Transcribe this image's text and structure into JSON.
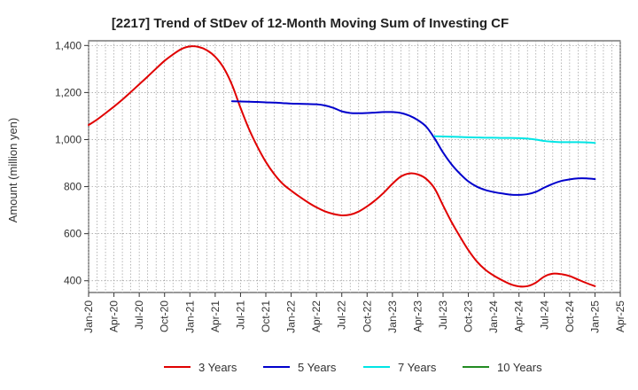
{
  "chart_data": {
    "type": "line",
    "title": "[2217]  Trend of StDev of 12-Month Moving Sum of Investing CF",
    "ylabel": "Amount (million yen)",
    "xlabel": "",
    "ylim": [
      350,
      1420
    ],
    "yticks": [
      400,
      600,
      800,
      1000,
      1200,
      1400
    ],
    "ytick_labels": [
      "400",
      "600",
      "800",
      "1,000",
      "1,200",
      "1,400"
    ],
    "xticks": [
      "Jan-20",
      "Apr-20",
      "Jul-20",
      "Oct-20",
      "Jan-21",
      "Apr-21",
      "Jul-21",
      "Oct-21",
      "Jan-22",
      "Apr-22",
      "Jul-22",
      "Oct-22",
      "Jan-23",
      "Apr-23",
      "Jul-23",
      "Oct-23",
      "Jan-24",
      "Apr-24",
      "Jul-24",
      "Oct-24",
      "Jan-25",
      "Apr-25"
    ],
    "grid": true,
    "legend_position": "bottom",
    "series": [
      {
        "name": "3 Years",
        "color": "#e00000",
        "points": [
          [
            "Jan-20",
            1062
          ],
          [
            "Feb-20",
            1085
          ],
          [
            "Mar-20",
            1112
          ],
          [
            "Apr-20",
            1140
          ],
          [
            "May-20",
            1170
          ],
          [
            "Jun-20",
            1202
          ],
          [
            "Jul-20",
            1235
          ],
          [
            "Aug-20",
            1268
          ],
          [
            "Sep-20",
            1302
          ],
          [
            "Oct-20",
            1335
          ],
          [
            "Nov-20",
            1362
          ],
          [
            "Dec-20",
            1385
          ],
          [
            "Jan-21",
            1396
          ],
          [
            "Feb-21",
            1394
          ],
          [
            "Mar-21",
            1380
          ],
          [
            "Apr-21",
            1352
          ],
          [
            "May-21",
            1305
          ],
          [
            "Jun-21",
            1232
          ],
          [
            "Jul-21",
            1135
          ],
          [
            "Aug-21",
            1045
          ],
          [
            "Sep-21",
            970
          ],
          [
            "Oct-21",
            905
          ],
          [
            "Nov-21",
            853
          ],
          [
            "Dec-21",
            812
          ],
          [
            "Jan-22",
            783
          ],
          [
            "Feb-22",
            757
          ],
          [
            "Mar-22",
            733
          ],
          [
            "Apr-22",
            712
          ],
          [
            "May-22",
            695
          ],
          [
            "Jun-22",
            684
          ],
          [
            "Jul-22",
            678
          ],
          [
            "Aug-22",
            681
          ],
          [
            "Sep-22",
            694
          ],
          [
            "Oct-22",
            716
          ],
          [
            "Nov-22",
            743
          ],
          [
            "Dec-22",
            775
          ],
          [
            "Jan-23",
            812
          ],
          [
            "Feb-23",
            843
          ],
          [
            "Mar-23",
            856
          ],
          [
            "Apr-23",
            852
          ],
          [
            "May-23",
            833
          ],
          [
            "Jun-23",
            792
          ],
          [
            "Jul-23",
            720
          ],
          [
            "Aug-23",
            650
          ],
          [
            "Sep-23",
            588
          ],
          [
            "Oct-23",
            530
          ],
          [
            "Nov-23",
            482
          ],
          [
            "Dec-23",
            447
          ],
          [
            "Jan-24",
            422
          ],
          [
            "Feb-24",
            402
          ],
          [
            "Mar-24",
            385
          ],
          [
            "Apr-24",
            376
          ],
          [
            "May-24",
            377
          ],
          [
            "Jun-24",
            392
          ],
          [
            "Jul-24",
            418
          ],
          [
            "Aug-24",
            430
          ],
          [
            "Sep-24",
            428
          ],
          [
            "Oct-24",
            420
          ],
          [
            "Nov-24",
            405
          ],
          [
            "Dec-24",
            390
          ],
          [
            "Jan-25",
            377
          ]
        ]
      },
      {
        "name": "5 Years",
        "color": "#0000cc",
        "points": [
          [
            "Jun-21",
            1163
          ],
          [
            "Jul-21",
            1162
          ],
          [
            "Aug-21",
            1161
          ],
          [
            "Sep-21",
            1160
          ],
          [
            "Oct-21",
            1158
          ],
          [
            "Nov-21",
            1157
          ],
          [
            "Dec-21",
            1155
          ],
          [
            "Jan-22",
            1153
          ],
          [
            "Feb-22",
            1152
          ],
          [
            "Mar-22",
            1151
          ],
          [
            "Apr-22",
            1150
          ],
          [
            "May-22",
            1145
          ],
          [
            "Jun-22",
            1135
          ],
          [
            "Jul-22",
            1120
          ],
          [
            "Aug-22",
            1113
          ],
          [
            "Sep-22",
            1112
          ],
          [
            "Oct-22",
            1113
          ],
          [
            "Nov-22",
            1115
          ],
          [
            "Dec-22",
            1117
          ],
          [
            "Jan-23",
            1117
          ],
          [
            "Feb-23",
            1113
          ],
          [
            "Mar-23",
            1102
          ],
          [
            "Apr-23",
            1083
          ],
          [
            "May-23",
            1055
          ],
          [
            "Jun-23",
            1005
          ],
          [
            "Jul-23",
            945
          ],
          [
            "Aug-23",
            895
          ],
          [
            "Sep-23",
            855
          ],
          [
            "Oct-23",
            822
          ],
          [
            "Nov-23",
            800
          ],
          [
            "Dec-23",
            786
          ],
          [
            "Jan-24",
            777
          ],
          [
            "Feb-24",
            771
          ],
          [
            "Mar-24",
            766
          ],
          [
            "Apr-24",
            765
          ],
          [
            "May-24",
            768
          ],
          [
            "Jun-24",
            778
          ],
          [
            "Jul-24",
            796
          ],
          [
            "Aug-24",
            812
          ],
          [
            "Sep-24",
            824
          ],
          [
            "Oct-24",
            831
          ],
          [
            "Nov-24",
            835
          ],
          [
            "Dec-24",
            835
          ],
          [
            "Jan-25",
            832
          ]
        ]
      },
      {
        "name": "7 Years",
        "color": "#00e5e5",
        "points": [
          [
            "Jun-23",
            1014
          ],
          [
            "Jul-23",
            1013
          ],
          [
            "Aug-23",
            1012
          ],
          [
            "Sep-23",
            1011
          ],
          [
            "Oct-23",
            1010
          ],
          [
            "Nov-23",
            1009
          ],
          [
            "Dec-23",
            1008
          ],
          [
            "Jan-24",
            1008
          ],
          [
            "Feb-24",
            1007
          ],
          [
            "Mar-24",
            1007
          ],
          [
            "Apr-24",
            1006
          ],
          [
            "May-24",
            1004
          ],
          [
            "Jun-24",
            1000
          ],
          [
            "Jul-24",
            994
          ],
          [
            "Aug-24",
            991
          ],
          [
            "Sep-24",
            989
          ],
          [
            "Oct-24",
            989
          ],
          [
            "Nov-24",
            989
          ],
          [
            "Dec-24",
            988
          ],
          [
            "Jan-25",
            986
          ]
        ]
      },
      {
        "name": "10 Years",
        "color": "#228b22",
        "points": []
      }
    ]
  }
}
